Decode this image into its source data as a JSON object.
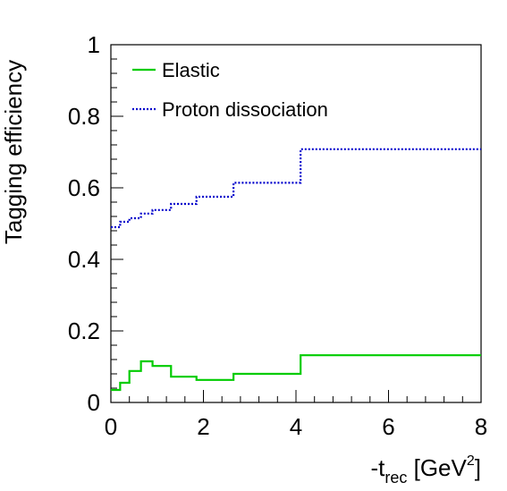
{
  "chart_data": {
    "type": "line",
    "step": true,
    "title": "",
    "xlabel": {
      "main": "-t",
      "sub": "rec",
      "unit_open": " [GeV",
      "unit_sup": "2",
      "unit_close": "]"
    },
    "ylabel": "Tagging efficiency",
    "xlim": [
      0,
      8
    ],
    "ylim": [
      0,
      1
    ],
    "x_ticks": [
      0,
      2,
      4,
      6,
      8
    ],
    "x_tick_labels": [
      "0",
      "2",
      "4",
      "6",
      "8"
    ],
    "y_ticks": [
      0,
      0.2,
      0.4,
      0.6,
      0.8,
      1
    ],
    "y_tick_labels": [
      "0",
      "0.2",
      "0.4",
      "0.6",
      "0.8",
      "1"
    ],
    "grid": false,
    "legend_position": "top-left",
    "series": [
      {
        "name": "Elastic",
        "color": "#00cc00",
        "style": "solid",
        "bin_edges": [
          0,
          0.2,
          0.4,
          0.65,
          0.9,
          1.3,
          1.85,
          2.65,
          4.1,
          8
        ],
        "values": [
          0.035,
          0.055,
          0.088,
          0.115,
          0.102,
          0.072,
          0.063,
          0.08,
          0.132
        ]
      },
      {
        "name": "Proton dissociation",
        "color": "#0000cc",
        "style": "dotted",
        "bin_edges": [
          0,
          0.2,
          0.4,
          0.65,
          0.9,
          1.3,
          1.85,
          2.65,
          4.1,
          8
        ],
        "values": [
          0.49,
          0.505,
          0.515,
          0.528,
          0.538,
          0.555,
          0.575,
          0.614,
          0.708
        ]
      }
    ]
  }
}
